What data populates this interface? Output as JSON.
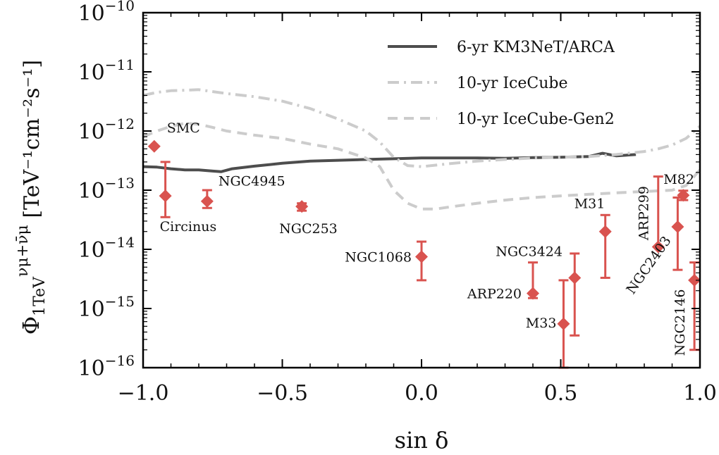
{
  "chart_data": {
    "type": "scatter",
    "xlabel": "sin δ",
    "ylabel": "Φ 1TeV νμ+ν̄μ [TeV⁻¹cm⁻²s⁻¹]",
    "ylabel_parts": {
      "symbol": "Φ",
      "superscript": "νμ+ν̄μ",
      "subscript": "1TeV",
      "unit": "[TeV⁻¹cm⁻²s⁻¹]"
    },
    "xlim": [
      -1.0,
      1.0
    ],
    "ylim_log10": [
      -16,
      -10
    ],
    "x_ticks": [
      {
        "value": -1.0,
        "label": "−1.0"
      },
      {
        "value": -0.5,
        "label": "−0.5"
      },
      {
        "value": 0.0,
        "label": "0.0"
      },
      {
        "value": 0.5,
        "label": "0.5"
      },
      {
        "value": 1.0,
        "label": "1.0"
      }
    ],
    "y_ticks": [
      {
        "exp": -10,
        "base": "10",
        "sup": "−10"
      },
      {
        "exp": -11,
        "base": "10",
        "sup": "−11"
      },
      {
        "exp": -12,
        "base": "10",
        "sup": "−12"
      },
      {
        "exp": -13,
        "base": "10",
        "sup": "−13"
      },
      {
        "exp": -14,
        "base": "10",
        "sup": "−14"
      },
      {
        "exp": -15,
        "base": "10",
        "sup": "−15"
      },
      {
        "exp": -16,
        "base": "10",
        "sup": "−16"
      }
    ],
    "legend_position": "top-right",
    "series": [
      {
        "name": "6-yr KM3NeT/ARCA",
        "style": "solid",
        "color": "#4d4d4d",
        "x": [
          -1.0,
          -0.95,
          -0.9,
          -0.85,
          -0.8,
          -0.75,
          -0.72,
          -0.68,
          -0.6,
          -0.5,
          -0.4,
          -0.3,
          -0.2,
          -0.1,
          0.0,
          0.1,
          0.2,
          0.3,
          0.4,
          0.5,
          0.6,
          0.65,
          0.7,
          0.77
        ],
        "y": [
          2.5e-13,
          2.45e-13,
          2.3e-13,
          2.2e-13,
          2.2e-13,
          2.1e-13,
          2.05e-13,
          2.3e-13,
          2.55e-13,
          2.85e-13,
          3.1e-13,
          3.2e-13,
          3.3e-13,
          3.4e-13,
          3.5e-13,
          3.5e-13,
          3.5e-13,
          3.45e-13,
          3.55e-13,
          3.6e-13,
          3.7e-13,
          4.2e-13,
          3.8e-13,
          4e-13
        ]
      },
      {
        "name": "10-yr IceCube",
        "style": "dashdot",
        "color": "#cccccc",
        "x": [
          -1.0,
          -0.95,
          -0.9,
          -0.8,
          -0.7,
          -0.6,
          -0.5,
          -0.4,
          -0.3,
          -0.2,
          -0.15,
          -0.1,
          -0.05,
          0.0,
          0.1,
          0.2,
          0.3,
          0.4,
          0.5,
          0.6,
          0.7,
          0.8,
          0.85,
          0.9,
          0.95,
          1.0
        ],
        "y": [
          4e-12,
          4.5e-12,
          4.8e-12,
          5e-12,
          4.3e-12,
          3.8e-12,
          3.2e-12,
          2.4e-12,
          1.6e-12,
          1e-12,
          6.5e-13,
          3.6e-13,
          2.6e-13,
          2.5e-13,
          2.8e-13,
          3.1e-13,
          3.3e-13,
          3.5e-13,
          3.6e-13,
          3.7e-13,
          4e-13,
          4.5e-13,
          5e-13,
          5.8e-13,
          7.5e-13,
          1.2e-12
        ]
      },
      {
        "name": "10-yr IceCube-Gen2",
        "style": "dashed",
        "color": "#cccccc",
        "x": [
          -1.0,
          -0.95,
          -0.9,
          -0.85,
          -0.8,
          -0.75,
          -0.7,
          -0.6,
          -0.5,
          -0.4,
          -0.3,
          -0.2,
          -0.15,
          -0.1,
          -0.05,
          0.0,
          0.05,
          0.1,
          0.2,
          0.3,
          0.4,
          0.5,
          0.6,
          0.7,
          0.8,
          0.9,
          0.95,
          1.0
        ],
        "y": [
          8e-13,
          1e-12,
          1.2e-12,
          1.35e-12,
          1.3e-12,
          1.15e-12,
          1e-12,
          8.5e-13,
          7.5e-13,
          6e-13,
          5e-13,
          3.5e-13,
          2.5e-13,
          1e-13,
          6e-14,
          4.8e-14,
          4.8e-14,
          5.2e-14,
          6e-14,
          6.8e-14,
          7.5e-14,
          8e-14,
          8.5e-14,
          9e-14,
          9.5e-14,
          1e-13,
          1.2e-13,
          2.2e-13
        ]
      }
    ],
    "points_color": "#d9534f",
    "points": [
      {
        "name": "SMC",
        "x": -0.96,
        "y": 5.5e-13,
        "y_lo": null,
        "y_hi": null
      },
      {
        "name": "Circinus",
        "x": -0.92,
        "y": 8e-14,
        "y_lo": 3.5e-14,
        "y_hi": 3e-13
      },
      {
        "name": "NGC4945",
        "x": -0.77,
        "y": 6.5e-14,
        "y_lo": 5e-14,
        "y_hi": 1e-13
      },
      {
        "name": "NGC253",
        "x": -0.43,
        "y": 5.3e-14,
        "y_lo": 4.5e-14,
        "y_hi": 6e-14
      },
      {
        "name": "NGC1068",
        "x": 0.0,
        "y": 7.5e-15,
        "y_lo": 3e-15,
        "y_hi": 1.35e-14
      },
      {
        "name": "ARP220",
        "x": 0.4,
        "y": 1.8e-15,
        "y_lo": 1.5e-15,
        "y_hi": 6e-15
      },
      {
        "name": "M33",
        "x": 0.51,
        "y": 5.5e-16,
        "y_lo": 1e-16,
        "y_hi": 3e-15
      },
      {
        "name": "NGC3424",
        "x": 0.55,
        "y": 3.3e-15,
        "y_lo": 3.5e-16,
        "y_hi": 8.5e-15
      },
      {
        "name": "M31",
        "x": 0.66,
        "y": 2e-14,
        "y_lo": 3.3e-15,
        "y_hi": 3.8e-14
      },
      {
        "name": "ARP299",
        "x": 0.85,
        "y": 1.1e-14,
        "y_lo": 1.1e-14,
        "y_hi": 1.7e-13
      },
      {
        "name": "NGC2403",
        "x": 0.92,
        "y": 2.4e-14,
        "y_lo": 4.5e-15,
        "y_hi": 7.5e-14
      },
      {
        "name": "M82",
        "x": 0.94,
        "y": 8.2e-14,
        "y_lo": 6.8e-14,
        "y_hi": 9.8e-14
      },
      {
        "name": "NGC2146",
        "x": 0.98,
        "y": 3e-15,
        "y_lo": 2e-16,
        "y_hi": 6e-15
      }
    ]
  }
}
